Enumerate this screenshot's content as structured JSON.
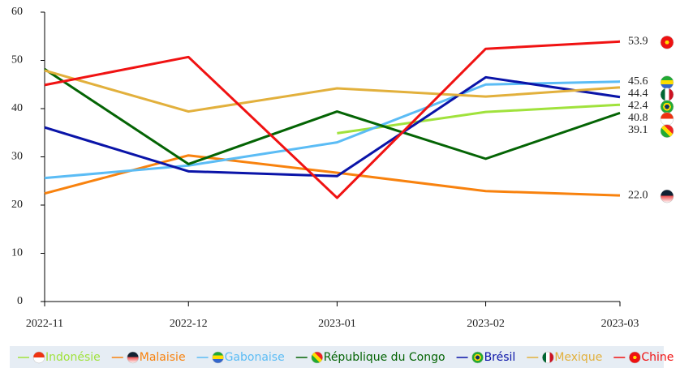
{
  "chart_data": {
    "type": "line",
    "categories": [
      "2022-11",
      "2022-12",
      "2023-01",
      "2023-02",
      "2023-03"
    ],
    "ylim": [
      0,
      60
    ],
    "yticks": [
      0,
      10,
      20,
      30,
      40,
      50,
      60
    ],
    "legend": "bottom",
    "series": [
      {
        "name": "Indonésie",
        "color": "#a0e23c",
        "values": [
          null,
          null,
          34.9,
          39.3,
          40.8
        ],
        "value_labels": [
          null,
          null,
          null,
          null,
          "40.8"
        ]
      },
      {
        "name": "Malaisie",
        "color": "#f8820e",
        "values": [
          22.4,
          30.3,
          26.7,
          22.9,
          22.0
        ],
        "value_labels": [
          null,
          null,
          null,
          null,
          "22.0"
        ]
      },
      {
        "name": "Gabonaise",
        "color": "#5bbcf5",
        "values": [
          25.6,
          28.2,
          33.0,
          45.0,
          45.6
        ],
        "value_labels": [
          null,
          null,
          null,
          null,
          "45.6"
        ]
      },
      {
        "name": "République du Congo",
        "color": "#046404",
        "values": [
          48.2,
          28.5,
          39.4,
          29.6,
          39.1
        ],
        "value_labels": [
          null,
          null,
          null,
          null,
          "39.1"
        ]
      },
      {
        "name": "Brésil",
        "color": "#0a14a8",
        "values": [
          36.1,
          27.0,
          26.0,
          46.5,
          42.4
        ],
        "value_labels": [
          null,
          null,
          null,
          null,
          "42.4"
        ]
      },
      {
        "name": "Mexique",
        "color": "#e2b03c",
        "values": [
          47.9,
          39.4,
          44.2,
          42.5,
          44.4
        ],
        "value_labels": [
          null,
          null,
          null,
          null,
          "44.4"
        ]
      },
      {
        "name": "Chine",
        "color": "#f01212",
        "values": [
          44.9,
          50.7,
          21.5,
          52.4,
          53.9
        ],
        "value_labels": [
          null,
          null,
          null,
          null,
          "53.9"
        ]
      }
    ]
  }
}
